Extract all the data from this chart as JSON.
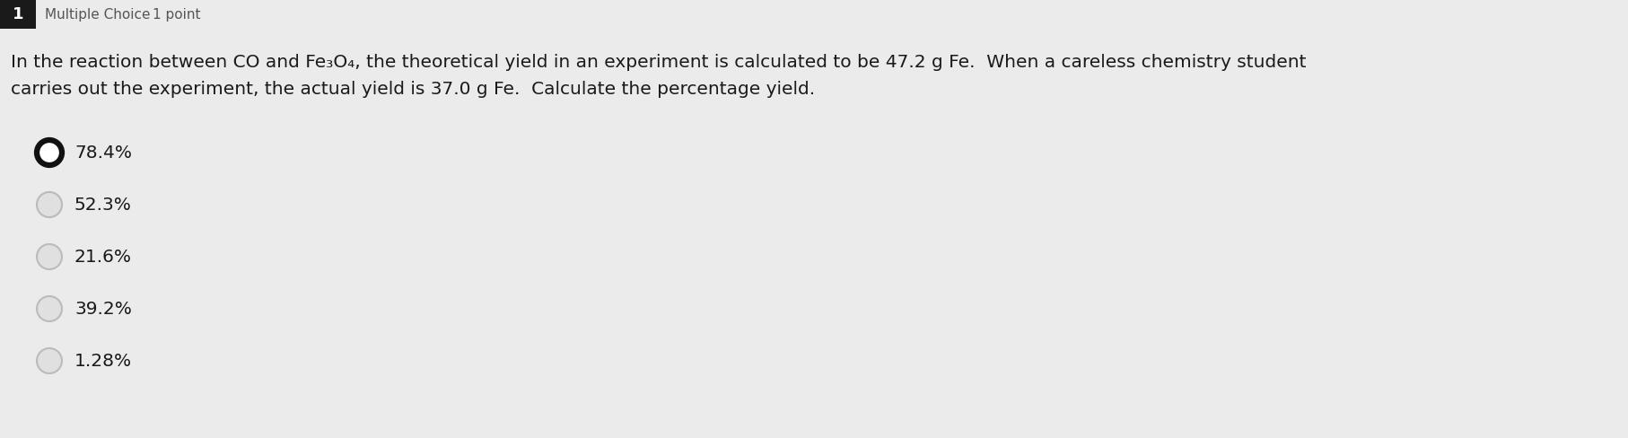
{
  "bg_color": "#ebebeb",
  "header_box_color": "#1a1a1a",
  "header_box_text": "1",
  "header_label": "Multiple Choice",
  "header_points": "1 point",
  "question_line1": "In the reaction between CO and Fe₃O₄, the theoretical yield in an experiment is calculated to be 47.2 g Fe.  When a careless chemistry student",
  "question_line2": "carries out the experiment, the actual yield is 37.0 g Fe.  Calculate the percentage yield.",
  "options": [
    "78.4%",
    "52.3%",
    "21.6%",
    "39.2%",
    "1.28%"
  ],
  "selected_index": 0,
  "text_fontsize": 14.5,
  "header_fontsize": 11,
  "question_fontsize": 14.5
}
